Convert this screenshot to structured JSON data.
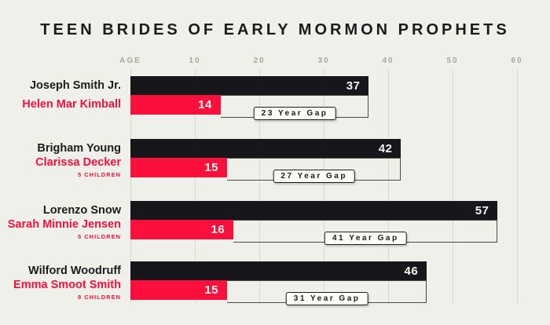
{
  "title": "TEEN BRIDES OF EARLY MORMON PROPHETS",
  "colors": {
    "background": "#eef0e9",
    "bar_black": "#17171b",
    "bar_red": "#fb0f3c",
    "text_dark": "#1b1b1e",
    "grid": "#d7dacd",
    "axis_label": "#a7aa9b",
    "bracket": "#4a4a44",
    "gap_box_bg": "#fdfdf8"
  },
  "chart_data": {
    "type": "bar",
    "orientation": "horizontal",
    "title": "TEEN BRIDES OF EARLY MORMON PROPHETS",
    "axis": {
      "label": "AGE",
      "ticks": [
        10,
        20,
        30,
        40,
        50,
        60
      ],
      "range": [
        0,
        65
      ],
      "grid": true
    },
    "groups": [
      {
        "husband": {
          "name": "Joseph Smith Jr.",
          "age": 37
        },
        "wife": {
          "name": "Helen Mar Kimball",
          "age": 14,
          "children": null
        },
        "gap_label": "23 Year Gap"
      },
      {
        "husband": {
          "name": "Brigham Young",
          "age": 42
        },
        "wife": {
          "name": "Clarissa Decker",
          "age": 15,
          "children": "5 CHILDREN"
        },
        "gap_label": "27 Year Gap"
      },
      {
        "husband": {
          "name": "Lorenzo Snow",
          "age": 57
        },
        "wife": {
          "name": "Sarah Minnie Jensen",
          "age": 16,
          "children": "5 CHILDREN"
        },
        "gap_label": "41 Year Gap"
      },
      {
        "husband": {
          "name": "Wilford Woodruff",
          "age": 46
        },
        "wife": {
          "name": "Emma Smoot Smith",
          "age": 15,
          "children": "8 CHILDREN"
        },
        "gap_label": "31 Year Gap"
      }
    ]
  }
}
